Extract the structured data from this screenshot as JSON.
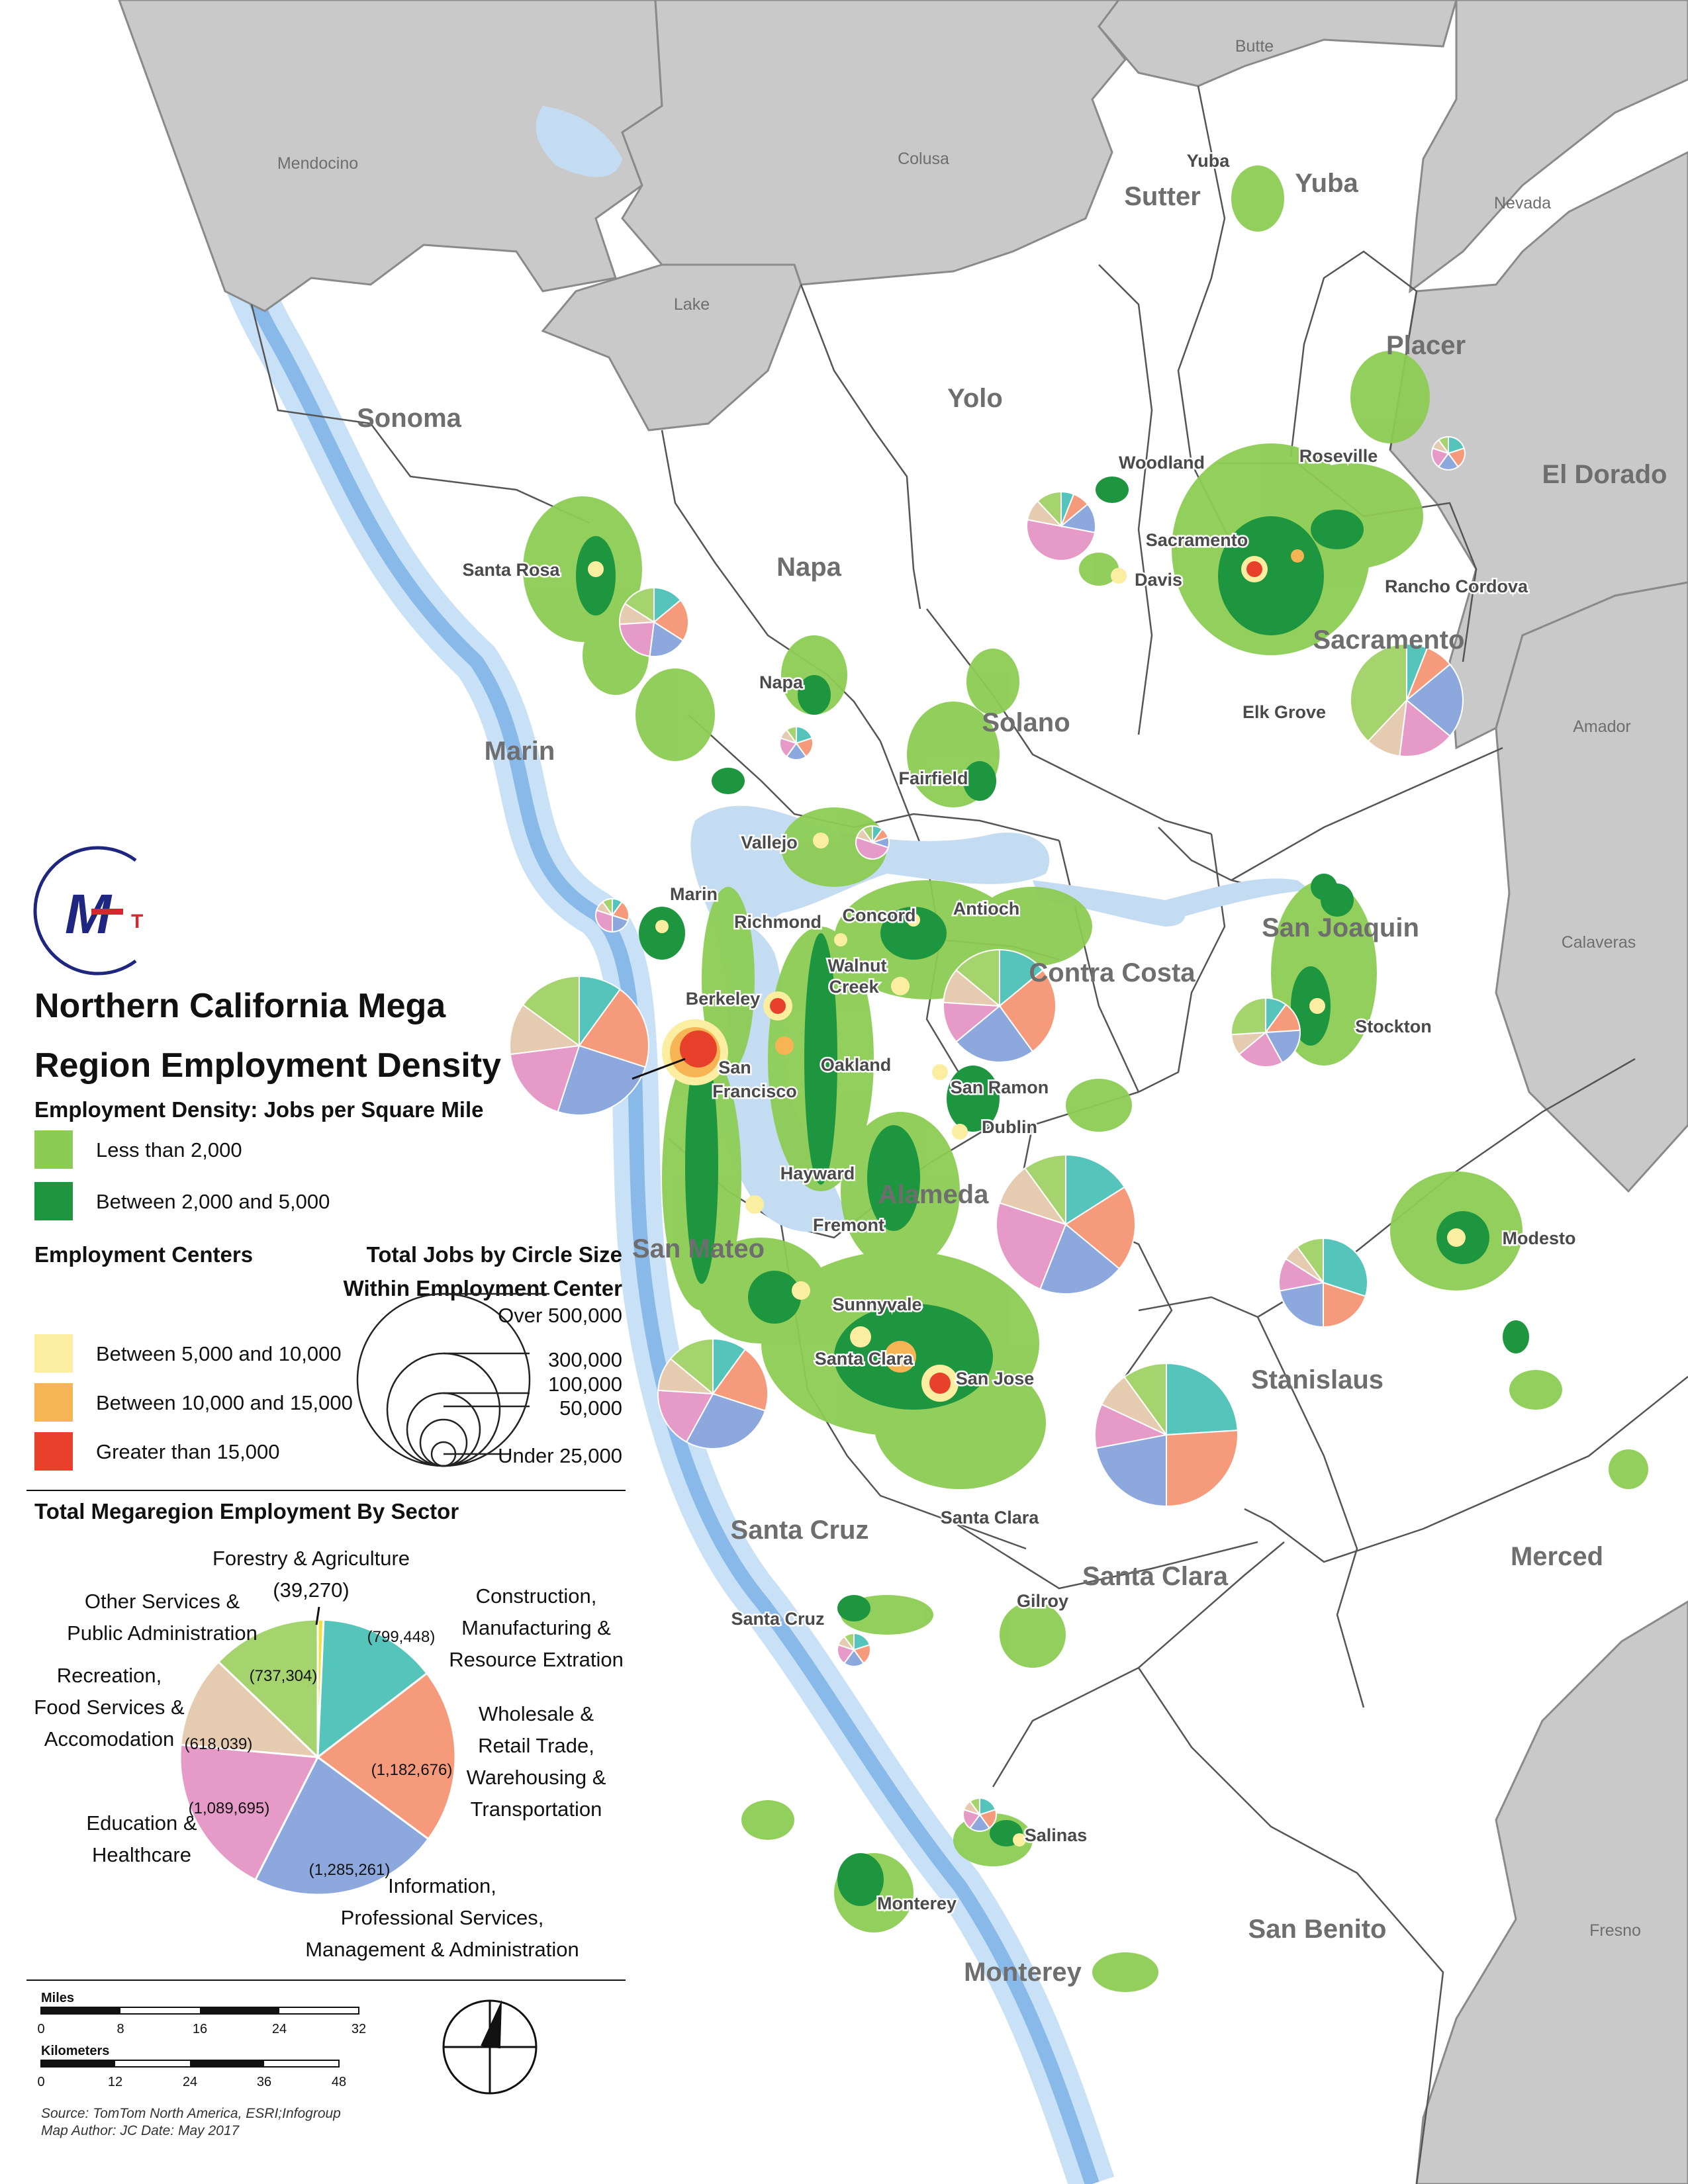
{
  "colors": {
    "outside_county": "#c9c9c9",
    "land": "#ffffff",
    "water": "#c4dcf2",
    "ocean": "#b8d5f0",
    "density_low": "#8dcc54",
    "density_mid": "#1e9640",
    "center_low": "#fceea0",
    "center_mid": "#f7b454",
    "center_high": "#e8412b",
    "sector_agri": "#f0e040",
    "sector_construction": "#55c5bb",
    "sector_trade": "#f59a7a",
    "sector_info": "#8ca8dc",
    "sector_education": "#e59ac7",
    "sector_recreation": "#e5cbb0",
    "sector_other": "#a5d36d",
    "logo": "#1f2680",
    "logo_accent": "#d9272e"
  },
  "counties": {
    "bay": [
      "Sonoma",
      "Napa",
      "Yolo",
      "Sutter",
      "Yuba",
      "Placer",
      "El Dorado",
      "Sacramento",
      "Solano",
      "Marin",
      "Contra Costa",
      "San Joaquin",
      "Alameda",
      "San Mateo",
      "Stanislaus",
      "Santa Clara",
      "Santa Cruz",
      "Merced",
      "San Benito",
      "Monterey"
    ],
    "outside": [
      "Butte",
      "Mendocino",
      "Colusa",
      "Yuba",
      "Nevada",
      "Lake",
      "Amador",
      "Calaveras",
      "Fresno"
    ]
  },
  "cities": [
    "Yuba",
    "Woodland",
    "Roseville",
    "Sacramento",
    "Davis",
    "Rancho Cordova",
    "Santa Rosa",
    "Elk Grove",
    "Napa",
    "Fairfield",
    "Vallejo",
    "Marin",
    "Richmond",
    "Concord",
    "Antioch",
    "Walnut",
    "Creek",
    "Berkeley",
    "Oakland",
    "San",
    "Francisco",
    "San Ramon",
    "Dublin",
    "Hayward",
    "Fremont",
    "Stockton",
    "Modesto",
    "Sunnyvale",
    "Santa Clara",
    "San Jose",
    "Santa Clara",
    "Gilroy",
    "Santa Cruz",
    "Salinas",
    "Monterey"
  ],
  "legend": {
    "title_line1": "Northern California Mega",
    "title_line2": "Region Employment Density",
    "density_heading": "Employment Density: Jobs per Square Mile",
    "density_items": [
      "Less than 2,000",
      "Between 2,000 and 5,000"
    ],
    "centers_heading": "Employment Centers",
    "center_items": [
      "Between 5,000 and 10,000",
      "Between 10,000 and 15,000",
      "Greater than 15,000"
    ],
    "circle_heading_line1": "Total Jobs by Circle Size",
    "circle_heading_line2": "Within Employment Center",
    "circle_labels": [
      "Over 500,000",
      "300,000",
      "100,000",
      "50,000",
      "Under 25,000"
    ],
    "sector_heading": "Total Megaregion Employment By Sector"
  },
  "sector_chart": {
    "type": "pie",
    "sectors": [
      {
        "label_lines": [
          "Forestry & Agriculture"
        ],
        "value": 39270,
        "value_label": "(39,270)",
        "color_key": "sector_agri"
      },
      {
        "label_lines": [
          "Construction,",
          "Manufacturing &",
          "Resource Extration"
        ],
        "value": 799448,
        "value_label": "(799,448)",
        "color_key": "sector_construction"
      },
      {
        "label_lines": [
          "Wholesale &",
          "Retail Trade,",
          "Warehousing &",
          "Transportation"
        ],
        "value": 1182676,
        "value_label": "(1,182,676)",
        "color_key": "sector_trade"
      },
      {
        "label_lines": [
          "Information,",
          "Professional Services,",
          "Management & Administration"
        ],
        "value": 1285261,
        "value_label": "(1,285,261)",
        "color_key": "sector_info"
      },
      {
        "label_lines": [
          "Education &",
          "Healthcare"
        ],
        "value": 1089695,
        "value_label": "(1,089,695)",
        "color_key": "sector_education"
      },
      {
        "label_lines": [
          "Recreation,",
          "Food Services &",
          "Accomodation"
        ],
        "value": 618039,
        "value_label": "(618,039)",
        "color_key": "sector_recreation"
      },
      {
        "label_lines": [
          "Other Services &",
          "Public Administration"
        ],
        "value": 737304,
        "value_label": "(737,304)",
        "color_key": "sector_other"
      }
    ]
  },
  "scale": {
    "miles_label": "Miles",
    "miles_ticks": [
      "0",
      "8",
      "16",
      "24",
      "32"
    ],
    "km_label": "Kilometers",
    "km_ticks": [
      "0",
      "12",
      "24",
      "36",
      "48"
    ]
  },
  "credits": {
    "source": "Source: TomTom North America, ESRI;Infogroup",
    "author": "Map Author: JC Date: May 2017"
  }
}
